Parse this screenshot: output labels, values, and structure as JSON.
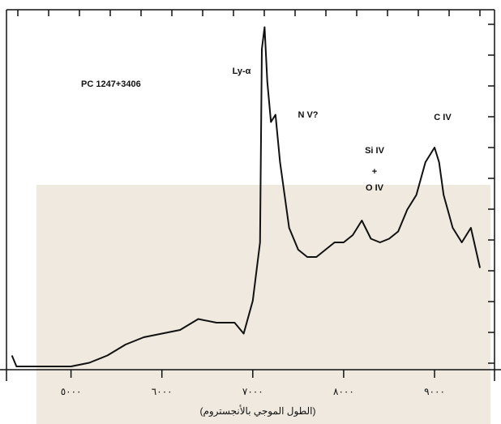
{
  "chart_data": {
    "type": "line",
    "title": "PC 1247+3406",
    "x_label": "(الطول الموجي بالأنجستروم)",
    "annotations": [
      "Ly-α",
      "N V?",
      "Si IV",
      "+",
      "O IV",
      "C IV"
    ],
    "series": [
      {
        "name": "PC 1247+3406",
        "color": "#111111",
        "x": [
          4350,
          4400,
          4600,
          4800,
          5000,
          5200,
          5400,
          5600,
          5800,
          6000,
          6200,
          6400,
          6600,
          6800,
          6900,
          7000,
          7080,
          7100,
          7130,
          7160,
          7200,
          7250,
          7300,
          7400,
          7500,
          7600,
          7700,
          7800,
          7900,
          8000,
          8100,
          8200,
          8300,
          8400,
          8500,
          8600,
          8700,
          8800,
          8900,
          9000,
          9050,
          9100,
          9200,
          9300,
          9400,
          9500
        ],
        "values": [
          0.7,
          0.4,
          0.4,
          0.4,
          0.4,
          0.5,
          0.7,
          1.0,
          1.2,
          1.3,
          1.4,
          1.7,
          1.6,
          1.6,
          1.3,
          2.2,
          3.8,
          9.1,
          9.7,
          8.2,
          7.1,
          7.3,
          6.0,
          4.2,
          3.6,
          3.4,
          3.4,
          3.6,
          3.8,
          3.8,
          4.0,
          4.4,
          3.9,
          3.8,
          3.9,
          4.1,
          4.7,
          5.1,
          6.0,
          6.4,
          6.0,
          5.1,
          4.2,
          3.8,
          4.2,
          3.1
        ]
      }
    ],
    "xlim": [
      4290,
      9660
    ],
    "xticks": [
      {
        "value": 5000,
        "label": "٥٠٠٠"
      },
      {
        "value": 6000,
        "label": "٦٠٠٠"
      },
      {
        "value": 7000,
        "label": "٧٠٠٠"
      },
      {
        "value": 8000,
        "label": "٨٠٠٠"
      },
      {
        "value": 9000,
        "label": "٩٠٠٠"
      }
    ],
    "ylim": [
      0,
      10
    ]
  }
}
